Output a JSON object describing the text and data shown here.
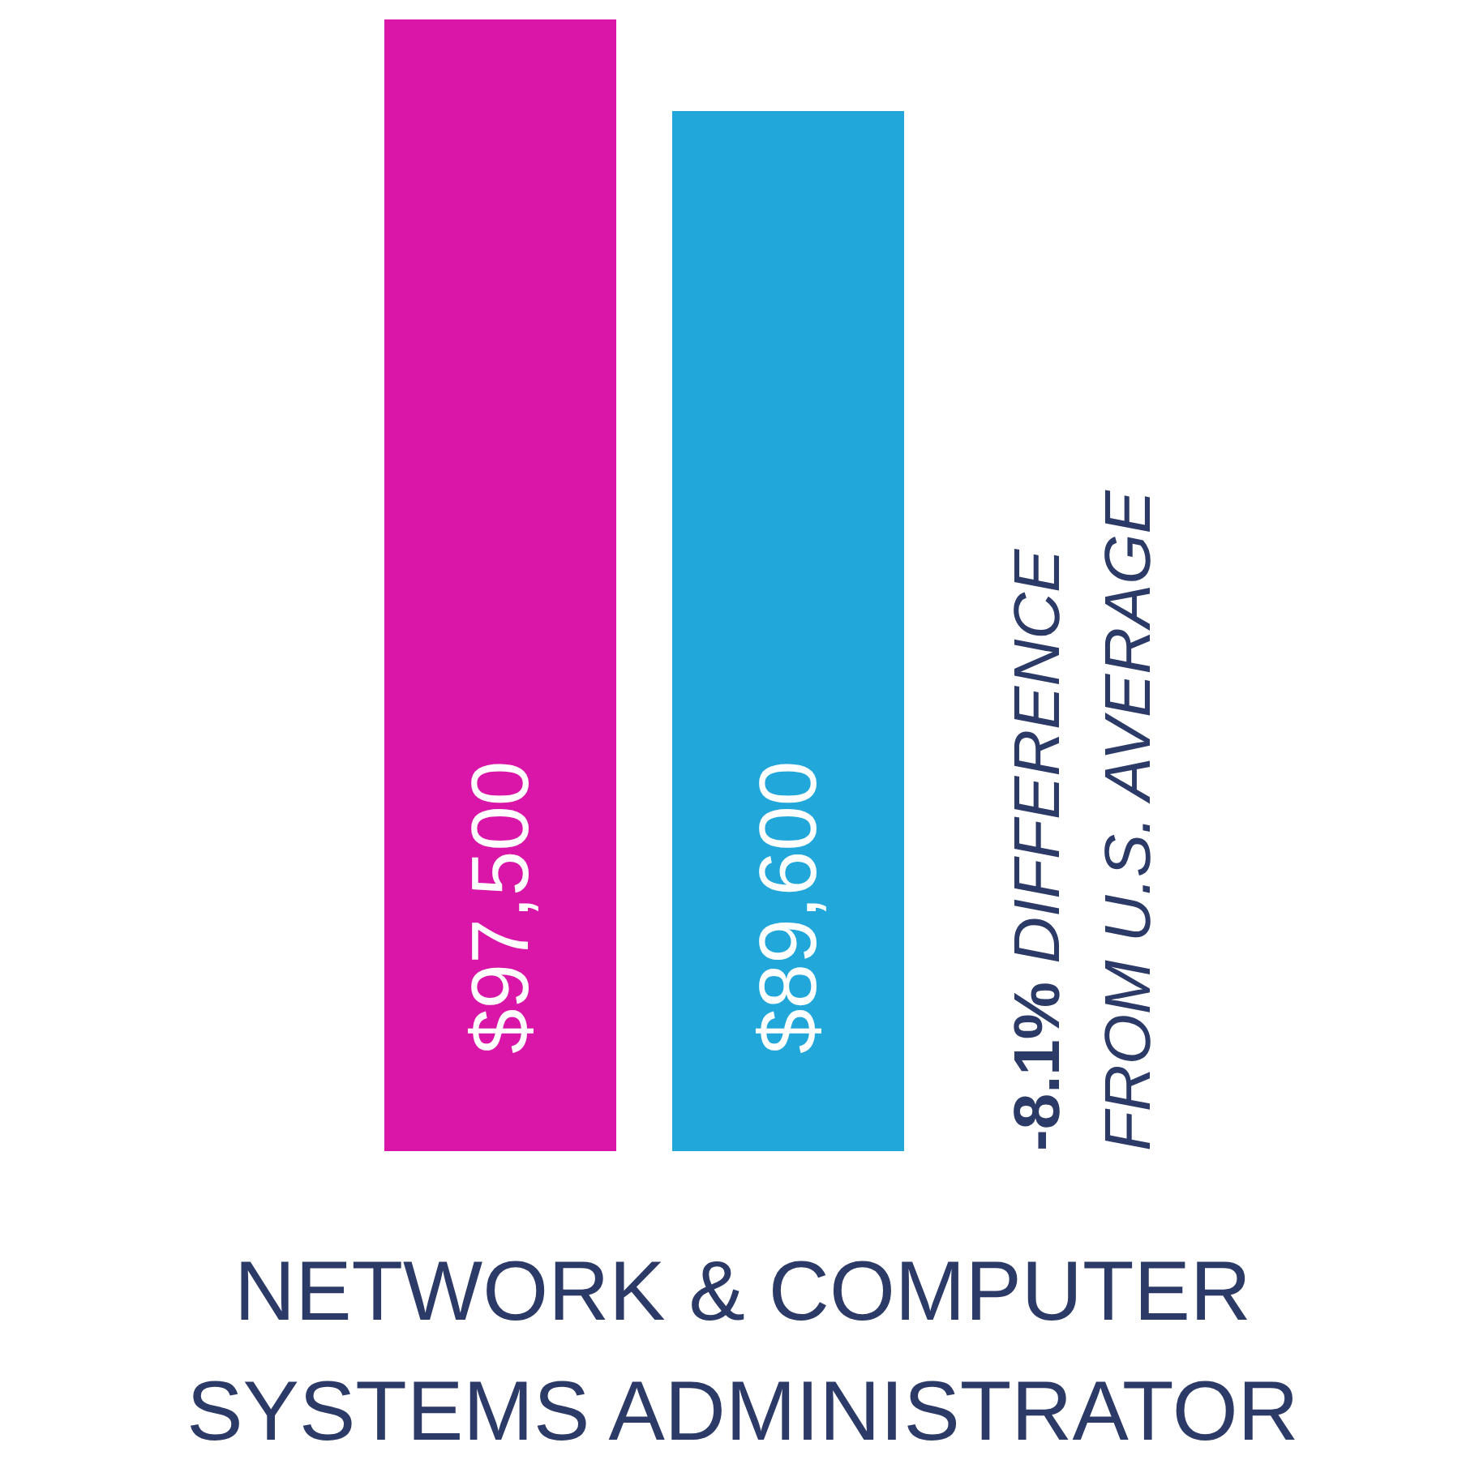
{
  "chart_data": {
    "type": "bar",
    "title": "NETWORK & COMPUTER SYSTEMS ADMINISTRATOR",
    "categories": [
      null,
      null
    ],
    "values": [
      97500,
      89600
    ],
    "colors": [
      "#d916a8",
      "#22a7db"
    ],
    "value_labels": [
      "$97,500",
      "$89,600"
    ],
    "annotations": [
      "-8.1% DIFFERENCE FROM U.S. AVERAGE"
    ]
  }
}
